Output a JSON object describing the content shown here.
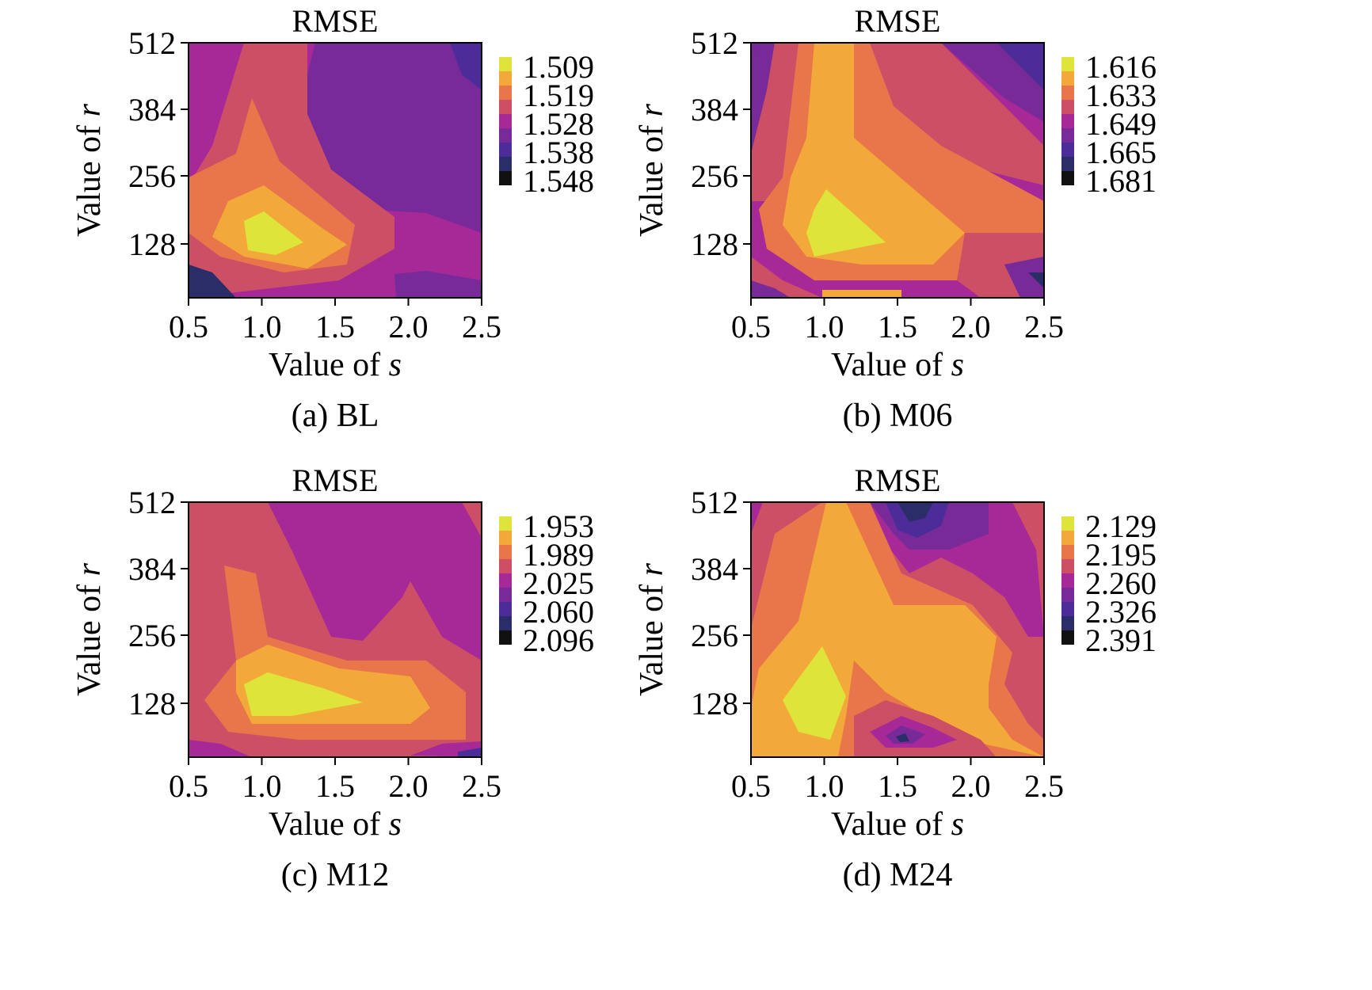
{
  "figure": {
    "layout": "2x2 grid of contour heatmaps"
  },
  "chart_data": [
    {
      "type": "heatmap",
      "caption": "(a) BL",
      "title": "RMSE",
      "xlabel_text": "Value of ",
      "xlabel_var": "s",
      "ylabel_text": "Value of ",
      "ylabel_var": "r",
      "x": [
        0.5,
        1.0,
        1.5,
        2.0,
        2.5
      ],
      "x_ticks": [
        "0.5",
        "1.0",
        "1.5",
        "2.0",
        "2.5"
      ],
      "y_ticks": [
        "512",
        "384",
        "256",
        "128"
      ],
      "y_tick_values": [
        512,
        384,
        256,
        128
      ],
      "xlim": [
        0.5,
        2.5
      ],
      "ylim": [
        48,
        512
      ],
      "colorbar": [
        "1.509",
        "1.519",
        "1.528",
        "1.538",
        "1.548"
      ],
      "levels": [
        1.509,
        1.519,
        1.528,
        1.538,
        1.548
      ],
      "colormap": "plasma",
      "minimum_near": {
        "s": 1.05,
        "r": 140
      },
      "maximum_near": {
        "s": 0.5,
        "r": 64
      }
    },
    {
      "type": "heatmap",
      "caption": "(b) M06",
      "title": "RMSE",
      "xlabel_text": "Value of ",
      "xlabel_var": "s",
      "ylabel_text": "Value of ",
      "ylabel_var": "r",
      "x_ticks": [
        "0.5",
        "1.0",
        "1.5",
        "2.0",
        "2.5"
      ],
      "y_ticks": [
        "512",
        "384",
        "256",
        "128"
      ],
      "y_tick_values": [
        512,
        384,
        256,
        128
      ],
      "xlim": [
        0.5,
        2.5
      ],
      "ylim": [
        48,
        512
      ],
      "colorbar": [
        "1.616",
        "1.633",
        "1.649",
        "1.665",
        "1.681"
      ],
      "levels": [
        1.616,
        1.633,
        1.649,
        1.665,
        1.681
      ],
      "colormap": "plasma",
      "minimum_near": {
        "s": 1.1,
        "r": 150
      },
      "maximum_near": {
        "s": 2.5,
        "r": 512
      }
    },
    {
      "type": "heatmap",
      "caption": "(c) M12",
      "title": "RMSE",
      "xlabel_text": "Value of ",
      "xlabel_var": "s",
      "ylabel_text": "Value of ",
      "ylabel_var": "r",
      "x_ticks": [
        "0.5",
        "1.0",
        "1.5",
        "2.0",
        "2.5"
      ],
      "y_ticks": [
        "512",
        "384",
        "256",
        "128"
      ],
      "y_tick_values": [
        512,
        384,
        256,
        128
      ],
      "xlim": [
        0.5,
        2.5
      ],
      "ylim": [
        48,
        512
      ],
      "colorbar": [
        "1.953",
        "1.989",
        "2.025",
        "2.060",
        "2.096"
      ],
      "levels": [
        1.953,
        1.989,
        2.025,
        2.06,
        2.096
      ],
      "colormap": "plasma",
      "minimum_near": {
        "s": 1.2,
        "r": 130
      },
      "maximum_near": {
        "s": 2.4,
        "r": 56
      }
    },
    {
      "type": "heatmap",
      "caption": "(d) M24",
      "title": "RMSE",
      "xlabel_text": "Value of ",
      "xlabel_var": "s",
      "ylabel_text": "Value of ",
      "ylabel_var": "r",
      "x_ticks": [
        "0.5",
        "1.0",
        "1.5",
        "2.0",
        "2.5"
      ],
      "y_ticks": [
        "512",
        "384",
        "256",
        "128"
      ],
      "y_tick_values": [
        512,
        384,
        256,
        128
      ],
      "xlim": [
        0.5,
        2.5
      ],
      "ylim": [
        48,
        512
      ],
      "colorbar": [
        "2.129",
        "2.195",
        "2.260",
        "2.326",
        "2.391"
      ],
      "levels": [
        2.129,
        2.195,
        2.26,
        2.326,
        2.391
      ],
      "colormap": "plasma",
      "minimum_near": {
        "s": 0.9,
        "r": 140
      },
      "maximum_near": {
        "s": 1.6,
        "r": 512
      }
    }
  ],
  "colors": {
    "level_1": "#dfe43a",
    "level_2": "#f2a93a",
    "level_3": "#e9764a",
    "level_4": "#cd4f66",
    "level_5": "#a62997",
    "level_6": "#772a98",
    "level_7": "#4b2c98",
    "level_8": "#2a2d68",
    "level_9": "#111111"
  }
}
